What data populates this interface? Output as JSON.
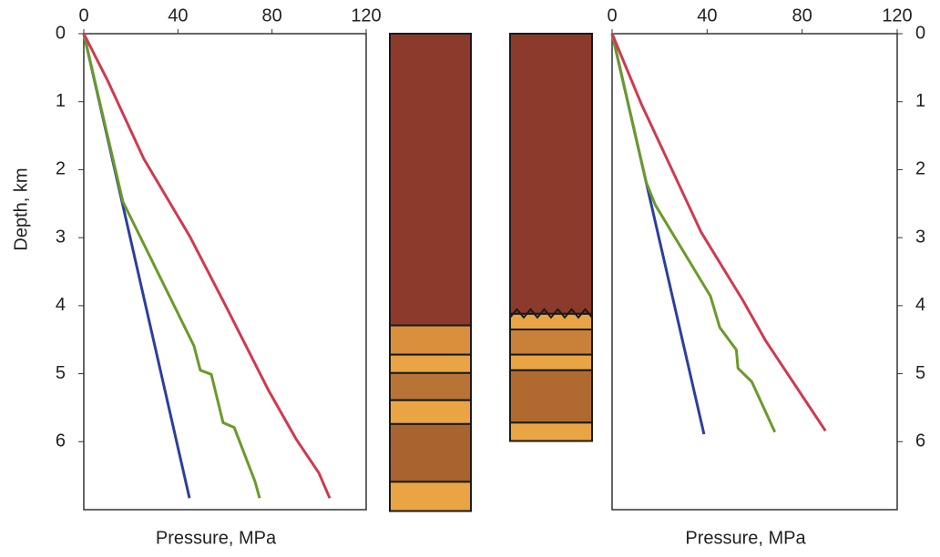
{
  "chart_data": [
    {
      "type": "line",
      "xlim": [
        0,
        120
      ],
      "xticks": [
        0,
        40,
        80,
        120
      ],
      "ylim": [
        0,
        7
      ],
      "yticks": [
        0,
        1,
        2,
        3,
        4,
        5,
        6
      ],
      "yaxis_side": "left",
      "inverted_y": true,
      "xlabel": "Pressure, MPa",
      "ylabel": "Depth, km",
      "series": [
        {
          "color": "#2b3f9e",
          "x": [
            0,
            44.9
          ],
          "values": [
            0,
            6.83
          ]
        },
        {
          "color": "#6a9a2a",
          "x": [
            0,
            16.6,
            46.8,
            49.5,
            54.2,
            59.2,
            63.9,
            72.8,
            74.7
          ],
          "values": [
            0,
            2.47,
            4.59,
            4.95,
            5.01,
            5.72,
            5.79,
            6.59,
            6.83
          ]
        },
        {
          "color": "#d0394f",
          "x": [
            0,
            10,
            25.5,
            45,
            61,
            78.6,
            90.2,
            99.9,
            104.5
          ],
          "values": [
            0,
            0.68,
            1.84,
            2.98,
            4.05,
            5.25,
            5.96,
            6.46,
            6.83
          ]
        }
      ]
    },
    {
      "type": "column",
      "ylim": [
        0,
        7
      ],
      "unconformity": false,
      "layers": [
        {
          "top": 0,
          "bottom": 4.29,
          "color": "#8c3a2c"
        },
        {
          "top": 4.29,
          "bottom": 4.72,
          "color": "#d98f3c"
        },
        {
          "top": 4.72,
          "bottom": 4.99,
          "color": "#e9a444"
        },
        {
          "top": 4.99,
          "bottom": 5.39,
          "color": "#b87434"
        },
        {
          "top": 5.39,
          "bottom": 5.74,
          "color": "#e9a444"
        },
        {
          "top": 5.74,
          "bottom": 6.59,
          "color": "#a9632e"
        },
        {
          "top": 6.59,
          "bottom": 7.02,
          "color": "#e9a444"
        }
      ]
    },
    {
      "type": "column",
      "ylim": [
        0,
        7
      ],
      "unconformity": true,
      "layers": [
        {
          "top": 0,
          "bottom": 4.12,
          "color": "#8c3a2c"
        },
        {
          "top": 4.12,
          "bottom": 4.35,
          "color": "#e9a444"
        },
        {
          "top": 4.35,
          "bottom": 4.72,
          "color": "#c98038"
        },
        {
          "top": 4.72,
          "bottom": 4.95,
          "color": "#e9a444"
        },
        {
          "top": 4.95,
          "bottom": 5.72,
          "color": "#b06a30"
        },
        {
          "top": 5.72,
          "bottom": 5.99,
          "color": "#e9a444"
        }
      ]
    },
    {
      "type": "line",
      "xlim": [
        0,
        120
      ],
      "xticks": [
        0,
        40,
        80,
        120
      ],
      "ylim": [
        0,
        7
      ],
      "yticks": [
        0,
        1,
        2,
        3,
        4,
        5,
        6
      ],
      "yaxis_side": "right",
      "inverted_y": true,
      "xlabel": "Pressure, MPa",
      "series": [
        {
          "color": "#2b3f9e",
          "x": [
            0,
            38.7
          ],
          "values": [
            0,
            5.89
          ]
        },
        {
          "color": "#6a9a2a",
          "x": [
            0,
            14.3,
            18.2,
            41.4,
            45.3,
            52.3,
            53,
            58.8,
            68.5
          ],
          "values": [
            0,
            2.18,
            2.52,
            3.86,
            4.32,
            4.65,
            4.92,
            5.12,
            5.86
          ]
        },
        {
          "color": "#d0394f",
          "x": [
            0,
            12.4,
            37.5,
            55,
            64.7,
            89.8
          ],
          "values": [
            0,
            1.04,
            2.92,
            3.92,
            4.52,
            5.84
          ]
        }
      ]
    }
  ]
}
